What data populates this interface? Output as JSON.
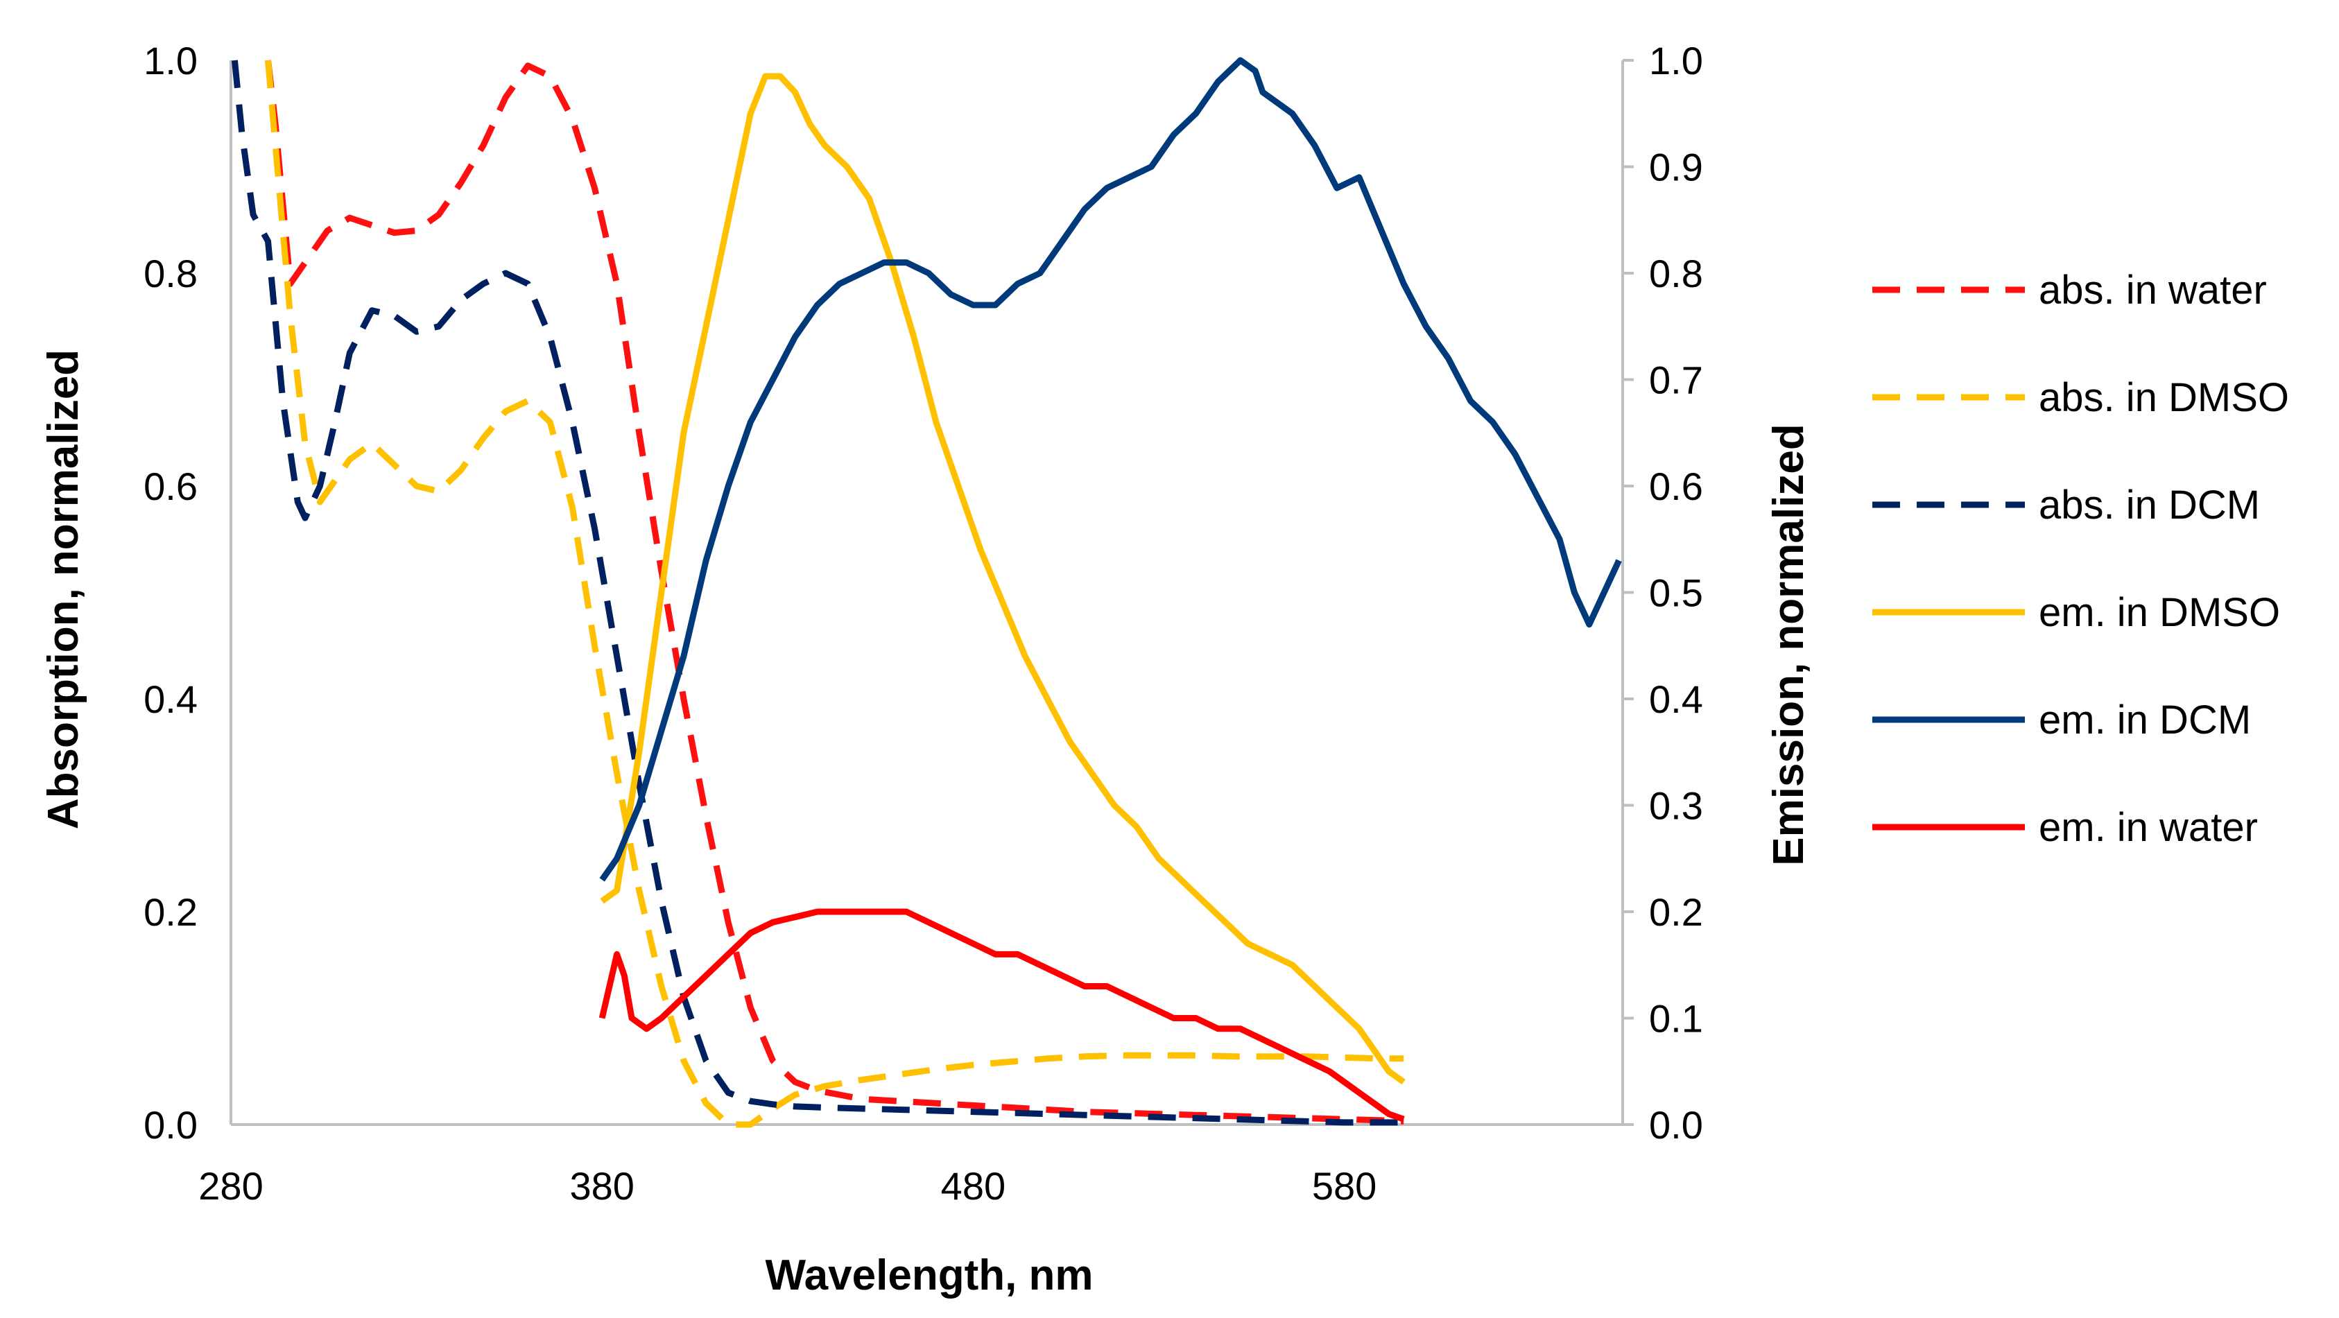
{
  "chart_data": {
    "type": "line",
    "title": "",
    "xlabel": "Wavelength, nm",
    "ylabel": "Absorption, normalized",
    "y2label": "Emission, normalized",
    "xlim": [
      280,
      655
    ],
    "ylim": [
      0,
      1
    ],
    "y2lim": [
      0,
      1
    ],
    "x_ticks": [
      "280",
      "380",
      "480",
      "580"
    ],
    "y_ticks": [
      "0.0",
      "0.2",
      "0.4",
      "0.6",
      "0.8",
      "1.0"
    ],
    "y2_ticks": [
      "0.0",
      "0.1",
      "0.2",
      "0.3",
      "0.4",
      "0.5",
      "0.6",
      "0.7",
      "0.8",
      "0.9",
      "1.0"
    ],
    "grid": false,
    "legend_position": "right",
    "series": [
      {
        "name": "abs. in water",
        "color": "#FF1010",
        "dash": "dashed",
        "axis": "left",
        "x": [
          290,
          292,
          296,
          302,
          306,
          312,
          318,
          324,
          330,
          336,
          342,
          348,
          354,
          360,
          366,
          372,
          378,
          384,
          390,
          396,
          402,
          408,
          414,
          420,
          426,
          432,
          438,
          444,
          450,
          460,
          470,
          480,
          490,
          500,
          510,
          520,
          530,
          540,
          550,
          560,
          570,
          580,
          590,
          596
        ],
        "y": [
          1.0,
          0.94,
          0.79,
          0.82,
          0.84,
          0.852,
          0.845,
          0.838,
          0.84,
          0.855,
          0.885,
          0.92,
          0.965,
          0.995,
          0.985,
          0.945,
          0.88,
          0.79,
          0.65,
          0.52,
          0.4,
          0.29,
          0.19,
          0.11,
          0.06,
          0.04,
          0.032,
          0.028,
          0.024,
          0.022,
          0.02,
          0.018,
          0.016,
          0.014,
          0.012,
          0.011,
          0.01,
          0.009,
          0.008,
          0.007,
          0.006,
          0.005,
          0.004,
          0.003
        ]
      },
      {
        "name": "abs. in DMSO",
        "color": "#FFC000",
        "dash": "dashed",
        "axis": "left",
        "x": [
          290,
          292,
          296,
          300,
          304,
          308,
          312,
          318,
          324,
          330,
          336,
          342,
          348,
          354,
          360,
          366,
          372,
          378,
          384,
          390,
          396,
          402,
          408,
          414,
          420,
          426,
          432,
          440,
          450,
          460,
          470,
          480,
          490,
          500,
          510,
          520,
          530,
          540,
          550,
          560,
          570,
          580,
          590,
          596
        ],
        "y": [
          1.0,
          0.92,
          0.76,
          0.64,
          0.585,
          0.605,
          0.625,
          0.64,
          0.62,
          0.6,
          0.595,
          0.615,
          0.645,
          0.67,
          0.68,
          0.66,
          0.58,
          0.45,
          0.33,
          0.22,
          0.13,
          0.06,
          0.02,
          0.0,
          0.0,
          0.015,
          0.028,
          0.036,
          0.042,
          0.047,
          0.052,
          0.056,
          0.059,
          0.062,
          0.064,
          0.065,
          0.065,
          0.065,
          0.064,
          0.064,
          0.064,
          0.063,
          0.062,
          0.062
        ]
      },
      {
        "name": "abs. in DCM",
        "color": "#002060",
        "dash": "dashed",
        "axis": "left",
        "x": [
          281,
          283,
          286,
          290,
          294,
          298,
          300,
          304,
          308,
          312,
          318,
          324,
          330,
          336,
          342,
          348,
          354,
          360,
          366,
          372,
          378,
          384,
          390,
          396,
          402,
          408,
          414,
          420,
          426,
          432,
          440,
          450,
          460,
          470,
          480,
          490,
          500,
          510,
          520,
          530,
          540,
          550,
          560,
          570,
          580,
          590,
          596
        ],
        "y": [
          1.0,
          0.93,
          0.855,
          0.83,
          0.68,
          0.585,
          0.57,
          0.6,
          0.66,
          0.725,
          0.765,
          0.76,
          0.745,
          0.75,
          0.775,
          0.79,
          0.8,
          0.79,
          0.74,
          0.66,
          0.56,
          0.44,
          0.32,
          0.21,
          0.12,
          0.06,
          0.03,
          0.022,
          0.019,
          0.017,
          0.016,
          0.015,
          0.014,
          0.013,
          0.012,
          0.011,
          0.01,
          0.009,
          0.008,
          0.007,
          0.006,
          0.005,
          0.004,
          0.003,
          0.002,
          0.002,
          0.002
        ]
      },
      {
        "name": "em. in DMSO",
        "color": "#FFC000",
        "dash": "solid",
        "axis": "right",
        "x": [
          380,
          384,
          390,
          396,
          402,
          408,
          414,
          420,
          424,
          428,
          432,
          436,
          440,
          446,
          452,
          458,
          464,
          470,
          476,
          482,
          488,
          494,
          500,
          506,
          512,
          518,
          524,
          530,
          536,
          542,
          548,
          554,
          560,
          566,
          572,
          578,
          584,
          588,
          592,
          596
        ],
        "y": [
          0.21,
          0.22,
          0.35,
          0.5,
          0.65,
          0.75,
          0.85,
          0.95,
          0.985,
          0.985,
          0.97,
          0.94,
          0.92,
          0.9,
          0.87,
          0.81,
          0.74,
          0.66,
          0.6,
          0.54,
          0.49,
          0.44,
          0.4,
          0.36,
          0.33,
          0.3,
          0.28,
          0.25,
          0.23,
          0.21,
          0.19,
          0.17,
          0.16,
          0.15,
          0.13,
          0.11,
          0.09,
          0.07,
          0.05,
          0.04
        ]
      },
      {
        "name": "em. in DCM",
        "color": "#003A7A",
        "dash": "solid",
        "axis": "right",
        "x": [
          380,
          384,
          390,
          396,
          402,
          408,
          414,
          420,
          426,
          432,
          438,
          444,
          450,
          456,
          462,
          468,
          474,
          480,
          486,
          492,
          498,
          504,
          510,
          516,
          522,
          528,
          534,
          540,
          546,
          552,
          556,
          558,
          562,
          566,
          572,
          578,
          584,
          590,
          596,
          602,
          608,
          614,
          620,
          626,
          632,
          638,
          642,
          646,
          650,
          654
        ],
        "y": [
          0.23,
          0.25,
          0.3,
          0.37,
          0.44,
          0.53,
          0.6,
          0.66,
          0.7,
          0.74,
          0.77,
          0.79,
          0.8,
          0.81,
          0.81,
          0.8,
          0.78,
          0.77,
          0.77,
          0.79,
          0.8,
          0.83,
          0.86,
          0.88,
          0.89,
          0.9,
          0.93,
          0.95,
          0.98,
          1.0,
          0.99,
          0.97,
          0.96,
          0.95,
          0.92,
          0.88,
          0.89,
          0.84,
          0.79,
          0.75,
          0.72,
          0.68,
          0.66,
          0.63,
          0.59,
          0.55,
          0.5,
          0.47,
          0.5,
          0.53
        ]
      },
      {
        "name": "em. in water",
        "color": "#FF0000",
        "dash": "solid",
        "axis": "right",
        "x": [
          380,
          382,
          384,
          386,
          388,
          392,
          396,
          402,
          408,
          414,
          420,
          426,
          432,
          438,
          444,
          450,
          456,
          462,
          468,
          474,
          480,
          486,
          492,
          498,
          504,
          510,
          516,
          522,
          528,
          534,
          540,
          546,
          552,
          558,
          564,
          570,
          576,
          580,
          584,
          588,
          592,
          596
        ],
        "y": [
          0.1,
          0.13,
          0.16,
          0.14,
          0.1,
          0.09,
          0.1,
          0.12,
          0.14,
          0.16,
          0.18,
          0.19,
          0.195,
          0.2,
          0.2,
          0.2,
          0.2,
          0.2,
          0.19,
          0.18,
          0.17,
          0.16,
          0.16,
          0.15,
          0.14,
          0.13,
          0.13,
          0.12,
          0.11,
          0.1,
          0.1,
          0.09,
          0.09,
          0.08,
          0.07,
          0.06,
          0.05,
          0.04,
          0.03,
          0.02,
          0.01,
          0.005
        ]
      }
    ]
  }
}
